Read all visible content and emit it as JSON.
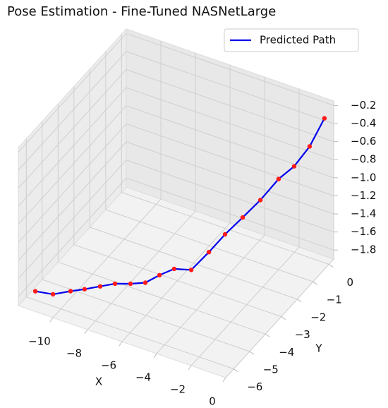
{
  "chart_data": {
    "type": "line3d",
    "title": "Pose Estimation - Fine-Tuned NASNetLarge",
    "xlabel": "X",
    "ylabel": "Y",
    "xlim": [
      -12,
      0
    ],
    "ylim": [
      -6.5,
      0.3
    ],
    "zlim": [
      -1.9,
      -0.15
    ],
    "xticks": [
      {
        "value": -10,
        "label": "−10"
      },
      {
        "value": -8,
        "label": "−8"
      },
      {
        "value": -6,
        "label": "−6"
      },
      {
        "value": -4,
        "label": "−4"
      },
      {
        "value": -2,
        "label": "−2"
      },
      0
    ],
    "yticks": [
      0,
      {
        "value": -1,
        "label": "−1"
      },
      {
        "value": -2,
        "label": "−2"
      },
      {
        "value": -3,
        "label": "−3"
      },
      {
        "value": -4,
        "label": "−4"
      },
      {
        "value": -5,
        "label": "−5"
      },
      {
        "value": -6,
        "label": "−6"
      }
    ],
    "zticks": [
      {
        "value": -0.2,
        "label": "−0.2"
      },
      {
        "value": -0.4,
        "label": "−0.4"
      },
      {
        "value": -0.6,
        "label": "−0.6"
      },
      {
        "value": -0.8,
        "label": "−0.8"
      },
      {
        "value": -1.0,
        "label": "−1.0"
      },
      {
        "value": -1.2,
        "label": "−1.2"
      },
      {
        "value": -1.4,
        "label": "−1.4"
      },
      {
        "value": -1.6,
        "label": "−1.6"
      },
      {
        "value": -1.8,
        "label": "−1.8"
      }
    ],
    "grid": true,
    "legend": "upper right",
    "series": [
      {
        "name": "Predicted Path",
        "color": "#0000ee",
        "marker_color": "#ff1a1a",
        "x": [
          -11,
          -10.39,
          -9.78,
          -9.17,
          -8.56,
          -7.94,
          -7.33,
          -6.72,
          -6.11,
          -5.5,
          -4.89,
          -4.28,
          -3.67,
          -3.06,
          -2.44,
          -1.83,
          -1.22,
          -0.61,
          0
        ],
        "y": [
          -6.52,
          -6.07,
          -5.63,
          -5.41,
          -5.09,
          -4.83,
          -4.52,
          -4.25,
          -4.02,
          -3.76,
          -3.35,
          -2.9,
          -2.55,
          -2.1,
          -1.66,
          -1.18,
          -0.86,
          -0.55,
          -0.28
        ],
        "z": [
          -1.67,
          -1.75,
          -1.76,
          -1.74,
          -1.73,
          -1.71,
          -1.73,
          -1.73,
          -1.65,
          -1.59,
          -1.64,
          -1.49,
          -1.32,
          -1.18,
          -1.03,
          -0.85,
          -0.73,
          -0.53,
          -0.23
        ]
      }
    ]
  }
}
